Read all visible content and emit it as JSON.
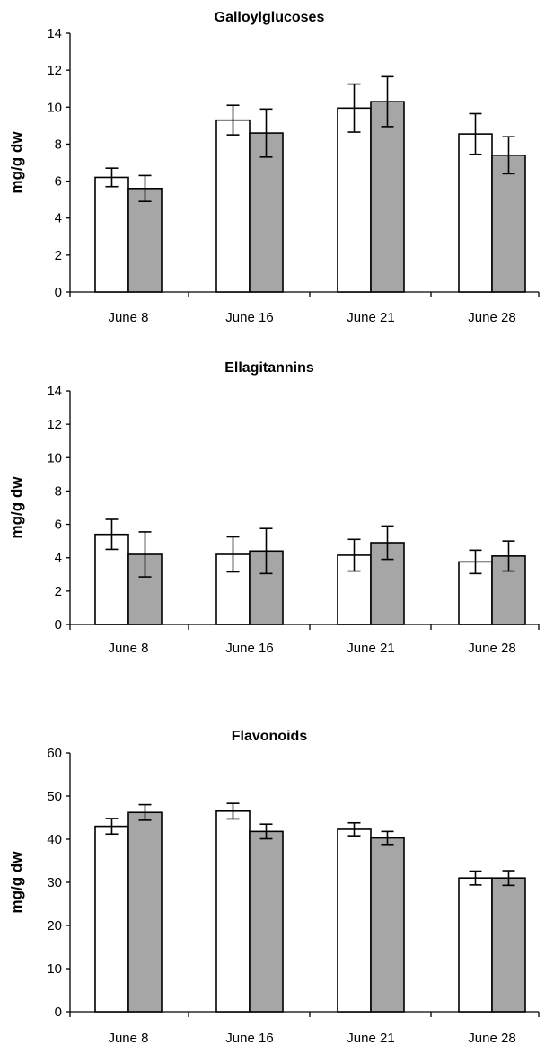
{
  "chart_data": [
    {
      "type": "bar",
      "title": "Galloylglucoses",
      "ylabel": "mg/g dw",
      "xlabel": "",
      "ylim": [
        0,
        14
      ],
      "yticks": [
        0,
        2,
        4,
        6,
        8,
        10,
        12,
        14
      ],
      "categories": [
        "June 8",
        "June 16",
        "June 21",
        "June 28"
      ],
      "series": [
        {
          "fill": "#ffffff",
          "values": [
            6.2,
            9.3,
            9.95,
            8.55
          ],
          "errors": [
            0.5,
            0.8,
            1.3,
            1.1
          ]
        },
        {
          "fill": "#a6a6a6",
          "values": [
            5.6,
            8.6,
            10.3,
            7.4
          ],
          "errors": [
            0.7,
            1.3,
            1.35,
            1.0
          ]
        }
      ]
    },
    {
      "type": "bar",
      "title": "Ellagitannins",
      "ylabel": "mg/g dw",
      "xlabel": "",
      "ylim": [
        0,
        14
      ],
      "yticks": [
        0,
        2,
        4,
        6,
        8,
        10,
        12,
        14
      ],
      "categories": [
        "June 8",
        "June 16",
        "June 21",
        "June 28"
      ],
      "series": [
        {
          "fill": "#ffffff",
          "values": [
            5.4,
            4.2,
            4.15,
            3.75
          ],
          "errors": [
            0.9,
            1.05,
            0.95,
            0.7
          ]
        },
        {
          "fill": "#a6a6a6",
          "values": [
            4.2,
            4.4,
            4.9,
            4.1
          ],
          "errors": [
            1.35,
            1.35,
            1.0,
            0.9
          ]
        }
      ]
    },
    {
      "type": "bar",
      "title": "Flavonoids",
      "ylabel": "mg/g dw",
      "xlabel": "",
      "ylim": [
        0,
        60
      ],
      "yticks": [
        0,
        10,
        20,
        30,
        40,
        50,
        60
      ],
      "categories": [
        "June 8",
        "June 16",
        "June 21",
        "June 28"
      ],
      "series": [
        {
          "fill": "#ffffff",
          "values": [
            43,
            46.5,
            42.3,
            31
          ],
          "errors": [
            1.8,
            1.8,
            1.5,
            1.6
          ]
        },
        {
          "fill": "#a6a6a6",
          "values": [
            46.2,
            41.8,
            40.3,
            31
          ],
          "errors": [
            1.8,
            1.7,
            1.5,
            1.7
          ]
        }
      ]
    }
  ]
}
